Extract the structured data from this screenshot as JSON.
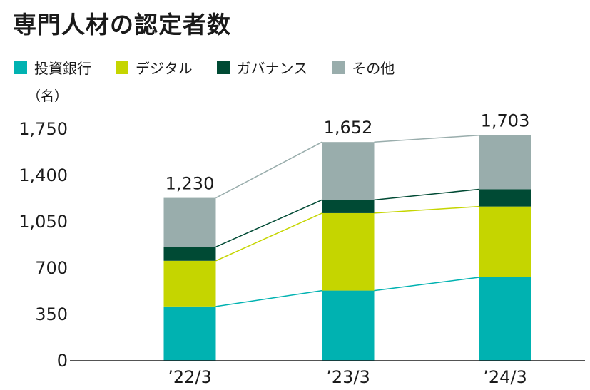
{
  "title": "専門人材の認定者数",
  "colors": {
    "investment_banking": "#00B2B1",
    "digital": "#C5D500",
    "governance": "#004A34",
    "other": "#99ADAC",
    "axis": "#1a1a1a"
  },
  "legend": [
    {
      "label": "投資銀行",
      "color": "#00B2B1"
    },
    {
      "label": "デジタル",
      "color": "#C5D500"
    },
    {
      "label": "ガバナンス",
      "color": "#004A34"
    },
    {
      "label": "その他",
      "color": "#99ADAC"
    }
  ],
  "chart_data": {
    "type": "bar",
    "stacked": true,
    "unit_label": "（名）",
    "categories": [
      "’22/3",
      "’23/3",
      "’24/3"
    ],
    "series": [
      {
        "name": "投資銀行",
        "color": "#00B2B1",
        "values": [
          410,
          530,
          630
        ]
      },
      {
        "name": "デジタル",
        "color": "#C5D500",
        "values": [
          345,
          585,
          535
        ]
      },
      {
        "name": "ガバナンス",
        "color": "#004A34",
        "values": [
          105,
          100,
          130
        ]
      },
      {
        "name": "その他",
        "color": "#99ADAC",
        "values": [
          370,
          437,
          408
        ]
      }
    ],
    "totals": [
      "1,230",
      "1,652",
      "1,703"
    ],
    "yticks": [
      "0",
      "350",
      "700",
      "1,050",
      "1,400",
      "1,750"
    ],
    "ylim": [
      0,
      1750
    ],
    "grid": false,
    "connector_lines": true,
    "legend_position": "top-left"
  }
}
